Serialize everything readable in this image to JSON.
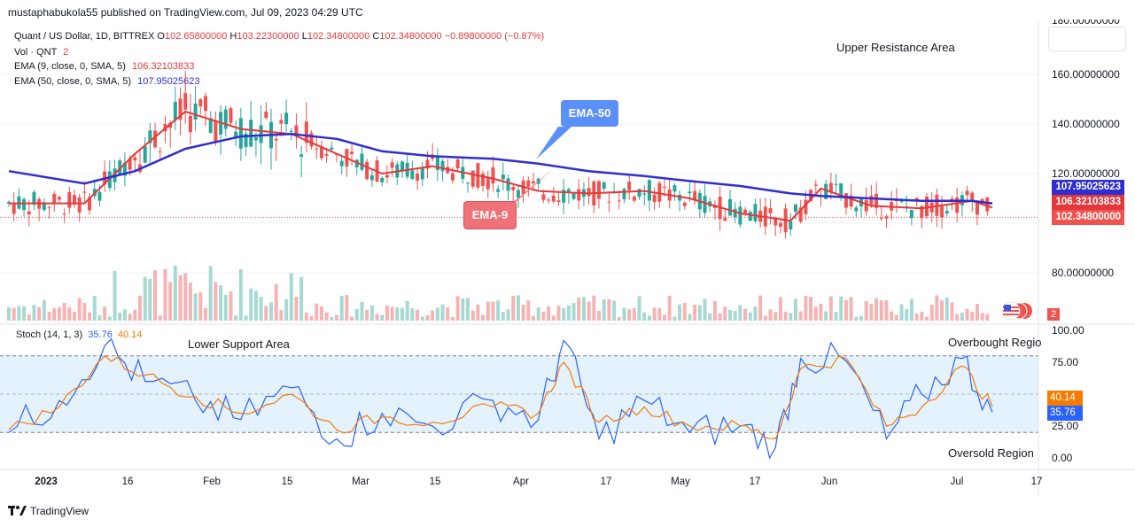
{
  "publisher_line": "mustaphabukola55 published on TradingView.com, Jul 09, 2023 04:29 UTC",
  "main_legend": {
    "symbol": "Quant / US Dollar, 1D, BITTREX",
    "o_label": "O",
    "o_value": "102.65800000",
    "h_label": "H",
    "h_value": "103.22300000",
    "l_label": "L",
    "l_value": "102.34800000",
    "c_label": "C",
    "c_value": "102.34800000",
    "change": "−0.89800000 (−0.87%)",
    "vol_label": "Vol · QNT",
    "vol_value": "2",
    "ema9_label": "EMA (9, close, 0, SMA, 5)",
    "ema9_value": "106.32103833",
    "ema50_label": "EMA (50, close, 0, SMA, 5)",
    "ema50_value": "107.95025623"
  },
  "stoch_legend": {
    "label": "Stoch (14, 1, 3)",
    "k_value": "35.76",
    "d_value": "40.14"
  },
  "annotations": {
    "upper_resistance": "Upper Resistance Area",
    "lower_support": "Lower Support Area",
    "overbought": "Overbought Regio",
    "oversold": "Oversold Region",
    "ema50_callout": "EMA-50",
    "ema9_callout": "EMA-9"
  },
  "price_axis": {
    "top_partial": "180.00000000",
    "ticks": [
      "160.00000000",
      "140.00000000",
      "120.00000000",
      "80.00000000"
    ],
    "tags": {
      "ema50": "107.95025623",
      "ema9": "106.32103833",
      "close": "102.34800000",
      "volume": "2"
    }
  },
  "stoch_axis": {
    "ticks": [
      "100.00",
      "75.00",
      "25.00",
      "0.00"
    ],
    "tags": {
      "d": "40.14",
      "k": "35.76"
    }
  },
  "time_axis": {
    "labels": [
      "2023",
      "16",
      "Feb",
      "15",
      "Mar",
      "15",
      "Apr",
      "17",
      "May",
      "17",
      "Jun",
      "Jul",
      "17"
    ]
  },
  "footer": {
    "brand": "TradingView"
  },
  "colors": {
    "up": "#26a69a",
    "down": "#ef5350",
    "ema9": "#e5383b",
    "ema50": "#2f2fd1",
    "stoch_k": "#2962ff",
    "stoch_d": "#f57c00",
    "callout_blue": "#5b8ff9",
    "callout_red": "#f07178",
    "stoch_band": "#e3f2fd"
  },
  "chart_data": {
    "type": "line",
    "title": "Quant / US Dollar, 1D, BITTREX",
    "x_range": [
      "2022-12-26",
      "2023-07-09"
    ],
    "ylim": [
      66,
      182
    ],
    "price_series": [
      {
        "name": "EMA (9, close, 0, SMA, 5)",
        "x": [
          "2022-12-26",
          "2023-01-10",
          "2023-01-20",
          "2023-01-30",
          "2023-02-10",
          "2023-02-20",
          "2023-03-01",
          "2023-03-10",
          "2023-03-20",
          "2023-04-01",
          "2023-04-10",
          "2023-04-20",
          "2023-05-01",
          "2023-05-10",
          "2023-05-20",
          "2023-05-30",
          "2023-06-05",
          "2023-06-15",
          "2023-06-25",
          "2023-07-05",
          "2023-07-09"
        ],
        "values": [
          108,
          108,
          128,
          145,
          138,
          136,
          128,
          120,
          123,
          118,
          113,
          112,
          113,
          110,
          104,
          101,
          114,
          107,
          106,
          109,
          106.32
        ]
      },
      {
        "name": "EMA (50, close, 0, SMA, 5)",
        "x": [
          "2022-12-26",
          "2023-01-10",
          "2023-01-20",
          "2023-01-30",
          "2023-02-10",
          "2023-02-20",
          "2023-03-01",
          "2023-03-10",
          "2023-03-20",
          "2023-04-01",
          "2023-04-10",
          "2023-04-20",
          "2023-05-01",
          "2023-05-10",
          "2023-05-20",
          "2023-05-30",
          "2023-06-05",
          "2023-06-15",
          "2023-06-25",
          "2023-07-05",
          "2023-07-09"
        ],
        "values": [
          121,
          116,
          121,
          130,
          135,
          136,
          134,
          129,
          127,
          126,
          124,
          121,
          119,
          117,
          115,
          112,
          111,
          110,
          109,
          109,
          107.95
        ]
      }
    ],
    "last_close": 102.348,
    "stoch": {
      "ylim": [
        0,
        100
      ],
      "bands": [
        20,
        80
      ],
      "series": [
        {
          "name": "%K",
          "x": [
            "2022-12-26",
            "2023-01-05",
            "2023-01-14",
            "2023-01-22",
            "2023-02-01",
            "2023-02-10",
            "2023-02-20",
            "2023-03-01",
            "2023-03-10",
            "2023-03-20",
            "2023-04-01",
            "2023-04-10",
            "2023-04-15",
            "2023-04-22",
            "2023-05-01",
            "2023-05-10",
            "2023-05-20",
            "2023-05-27",
            "2023-06-01",
            "2023-06-10",
            "2023-06-18",
            "2023-06-25",
            "2023-07-03",
            "2023-07-09"
          ],
          "values": [
            20,
            45,
            88,
            60,
            45,
            30,
            55,
            15,
            35,
            25,
            45,
            30,
            92,
            15,
            45,
            20,
            25,
            8,
            78,
            76,
            15,
            50,
            78,
            35.76
          ]
        },
        {
          "name": "%D",
          "x": [
            "2022-12-26",
            "2023-01-05",
            "2023-01-14",
            "2023-01-22",
            "2023-02-01",
            "2023-02-10",
            "2023-02-20",
            "2023-03-01",
            "2023-03-10",
            "2023-03-20",
            "2023-04-01",
            "2023-04-10",
            "2023-04-15",
            "2023-04-22",
            "2023-05-01",
            "2023-05-10",
            "2023-05-20",
            "2023-05-27",
            "2023-06-01",
            "2023-06-10",
            "2023-06-18",
            "2023-06-25",
            "2023-07-03",
            "2023-07-09"
          ],
          "values": [
            22,
            40,
            80,
            65,
            48,
            35,
            50,
            22,
            32,
            28,
            40,
            35,
            75,
            28,
            40,
            25,
            25,
            15,
            70,
            78,
            25,
            40,
            72,
            40.14
          ]
        }
      ]
    }
  }
}
